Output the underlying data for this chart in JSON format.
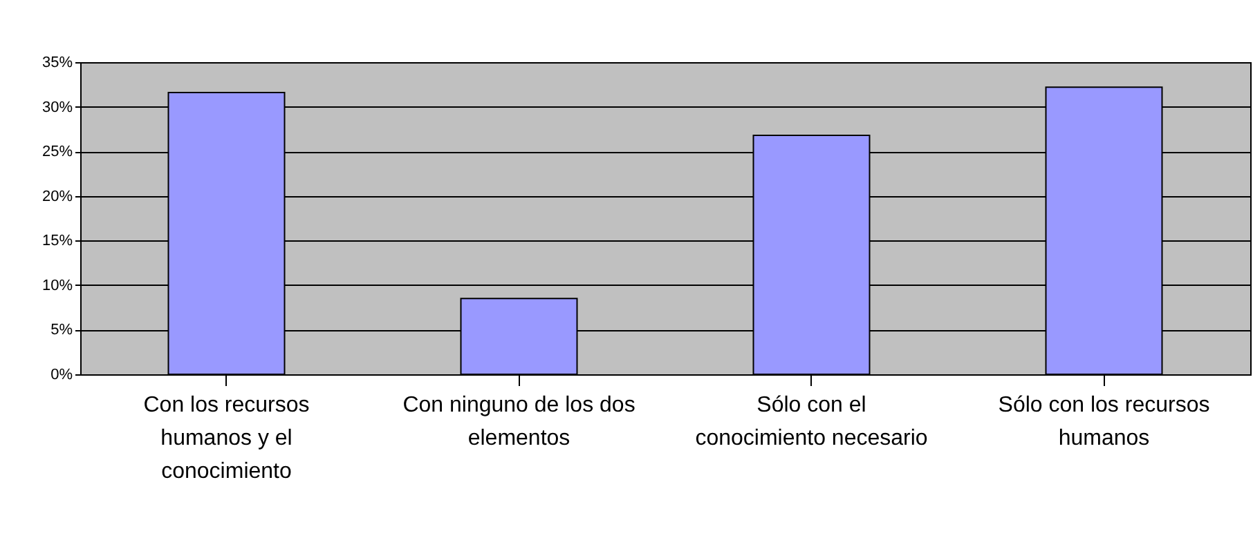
{
  "chart_data": {
    "type": "bar",
    "categories": [
      "Con los recursos humanos y el conocimiento",
      "Con ninguno de los dos elementos",
      "Sólo con el conocimiento necesario",
      "Sólo con los recursos humanos"
    ],
    "values": [
      31.6,
      8.5,
      26.8,
      32.2
    ],
    "color": "#9999ff",
    "ylim": [
      0,
      35
    ],
    "yticks": [
      {
        "value": 0,
        "label": "0%"
      },
      {
        "value": 5,
        "label": "5%"
      },
      {
        "value": 10,
        "label": "10%"
      },
      {
        "value": 15,
        "label": "15%"
      },
      {
        "value": 20,
        "label": "20%"
      },
      {
        "value": 25,
        "label": "25%"
      },
      {
        "value": 30,
        "label": "30%"
      },
      {
        "value": 35,
        "label": "35%"
      }
    ],
    "grid": "y"
  }
}
